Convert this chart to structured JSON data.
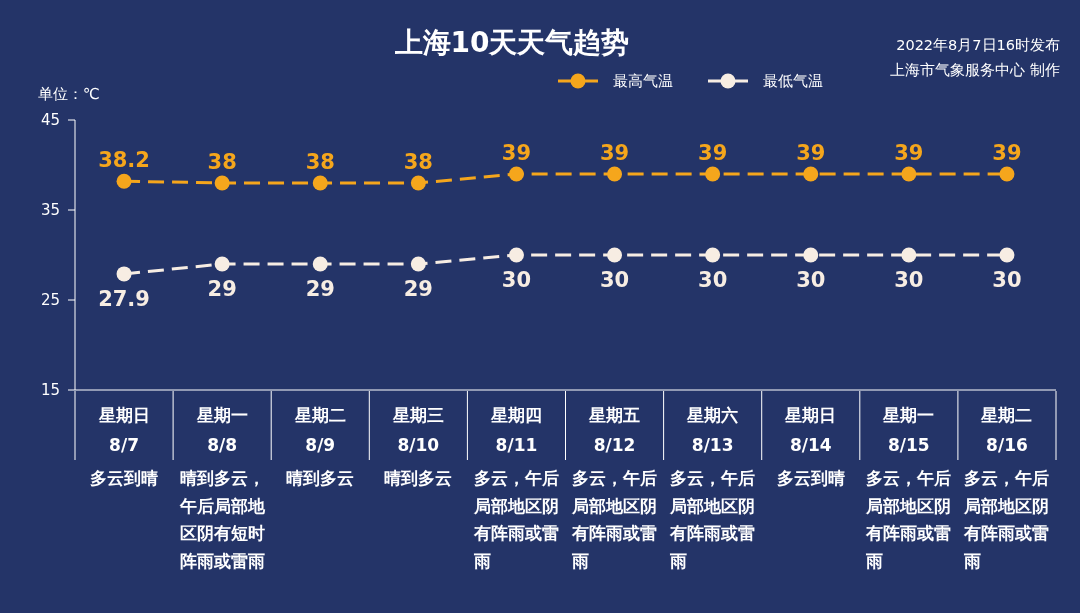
{
  "chart_data": {
    "type": "line",
    "title": "上海10天天气趋势",
    "ylabel": "单位：℃",
    "annotations": [
      "2022年8月7日16时发布",
      "上海市气象服务中心 制作"
    ],
    "categories": [
      "星期日\n8/7\n多云到晴",
      "星期一\n8/8\n晴到多云，午后局部地区阴有短时阵雨或雷雨",
      "星期二\n8/9\n晴到多云",
      "星期三\n8/10\n晴到多云",
      "星期四\n8/11\n多云，午后局部地区阴有阵雨或雷雨",
      "星期五\n8/12\n多云，午后局部地区阴有阵雨或雷雨",
      "星期六\n8/13\n多云，午后局部地区阴有阵雨或雷雨",
      "星期日\n8/14\n多云到晴",
      "星期一\n8/15\n多云，午后局部地区阴有阵雨或雷雨",
      "星期二\n8/16\n多云，午后局部地区阴有阵雨或雷雨"
    ],
    "series": [
      {
        "name": "最高气温",
        "color": "#f5a61c",
        "values": [
          38.2,
          38,
          38,
          38,
          39,
          39,
          39,
          39,
          39,
          39
        ]
      },
      {
        "name": "最低气温",
        "color": "#f7ede3",
        "values": [
          27.9,
          29,
          29,
          29,
          30,
          30,
          30,
          30,
          30,
          30
        ]
      }
    ],
    "ylim": [
      15,
      45
    ],
    "yticks": [
      15,
      25,
      35,
      45
    ],
    "legend": "top",
    "marker": "circle",
    "line_style": "dashed",
    "data_labels": true
  }
}
